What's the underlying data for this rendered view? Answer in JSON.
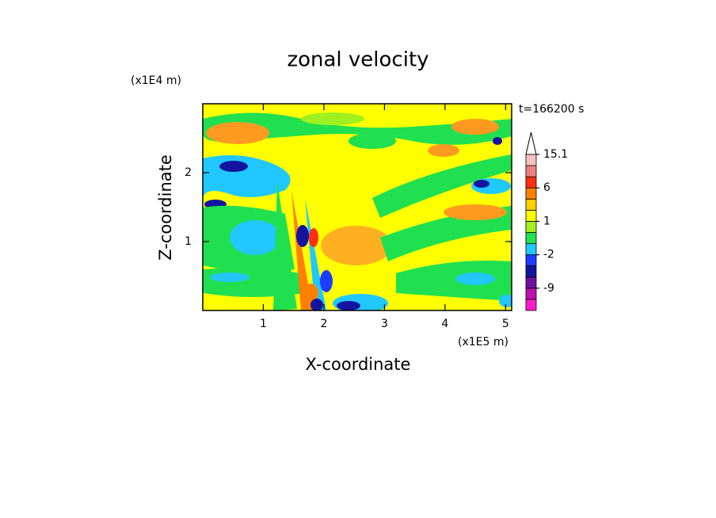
{
  "chart_data": {
    "type": "contour",
    "title": "zonal velocity",
    "x_label": "X-coordinate",
    "y_label": "Z-coordinate",
    "x_unit": "(x1E5 m)",
    "y_unit": "(x1E4 m)",
    "time_label": "t=166200 s",
    "xlim": [
      0,
      5.1
    ],
    "xticks": [
      1,
      2,
      3,
      4,
      5
    ],
    "ylim": [
      0,
      3
    ],
    "yticks": [
      1,
      2
    ],
    "colorbar": {
      "levels": [
        -15,
        -12,
        -9,
        -6,
        -4,
        -2,
        -1,
        0,
        1,
        2,
        3,
        6,
        9,
        12,
        15.1
      ],
      "colors": [
        "#ff1cc8",
        "#c010b0",
        "#7010a0",
        "#1414a0",
        "#1e3cff",
        "#20c8ff",
        "#20e050",
        "#a0f020",
        "#ffff00",
        "#ffd000",
        "#ff8000",
        "#ff3010",
        "#f08080",
        "#f8c0c0"
      ],
      "ticks": [
        -9,
        -2,
        1,
        6,
        15.1
      ]
    }
  }
}
